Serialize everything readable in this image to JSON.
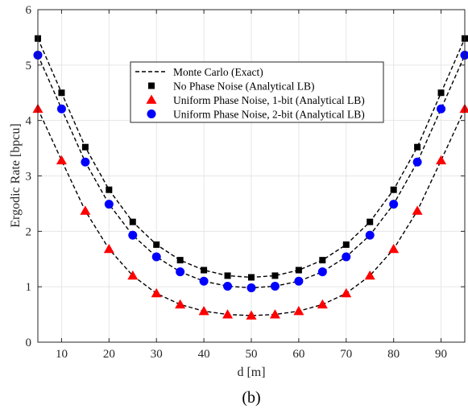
{
  "chart_data": {
    "type": "line",
    "title": "",
    "caption": "(b)",
    "xlabel": "d [m]",
    "ylabel": "Ergodic Rate [bpcu]",
    "xlim": [
      5,
      95
    ],
    "ylim": [
      0,
      6
    ],
    "xticks": [
      10,
      20,
      30,
      40,
      50,
      60,
      70,
      80,
      90
    ],
    "yticks": [
      0,
      1,
      2,
      3,
      4,
      5,
      6
    ],
    "grid": true,
    "legend_position": "top-center",
    "x": [
      5,
      10,
      15,
      20,
      25,
      30,
      35,
      40,
      45,
      50,
      55,
      60,
      65,
      70,
      75,
      80,
      85,
      90,
      95
    ],
    "series": [
      {
        "name": "Monte Carlo (Exact)",
        "style": "dashed-line",
        "color": "#000000",
        "curves": [
          [
            5.48,
            4.5,
            3.52,
            2.75,
            2.17,
            1.76,
            1.48,
            1.3,
            1.2,
            1.17,
            1.2,
            1.3,
            1.48,
            1.76,
            2.17,
            2.75,
            3.52,
            4.5,
            5.48
          ],
          [
            5.18,
            4.21,
            3.25,
            2.49,
            1.93,
            1.54,
            1.27,
            1.1,
            1.01,
            0.98,
            1.01,
            1.1,
            1.27,
            1.54,
            1.93,
            2.49,
            3.25,
            4.21,
            5.18
          ],
          [
            4.21,
            3.28,
            2.37,
            1.68,
            1.2,
            0.88,
            0.68,
            0.56,
            0.5,
            0.48,
            0.5,
            0.56,
            0.68,
            0.88,
            1.2,
            1.68,
            2.37,
            3.28,
            4.21
          ]
        ]
      },
      {
        "name": "No Phase Noise (Analytical LB)",
        "marker": "square",
        "color": "#000000",
        "values": [
          5.48,
          4.5,
          3.52,
          2.75,
          2.17,
          1.76,
          1.48,
          1.3,
          1.2,
          1.17,
          1.2,
          1.3,
          1.48,
          1.76,
          2.17,
          2.75,
          3.52,
          4.5,
          5.48
        ]
      },
      {
        "name": "Uniform Phase Noise, 1-bit (Analytical LB)",
        "marker": "triangle",
        "color": "#ff0000",
        "values": [
          4.21,
          3.28,
          2.37,
          1.68,
          1.2,
          0.88,
          0.68,
          0.56,
          0.5,
          0.48,
          0.5,
          0.56,
          0.68,
          0.88,
          1.2,
          1.68,
          2.37,
          3.28,
          4.21
        ]
      },
      {
        "name": "Uniform Phase Noise, 2-bit (Analytical LB)",
        "marker": "circle",
        "color": "#0000ff",
        "values": [
          5.18,
          4.21,
          3.25,
          2.49,
          1.93,
          1.54,
          1.27,
          1.1,
          1.01,
          0.98,
          1.01,
          1.1,
          1.27,
          1.54,
          1.93,
          2.49,
          3.25,
          4.21,
          5.18
        ]
      }
    ]
  }
}
